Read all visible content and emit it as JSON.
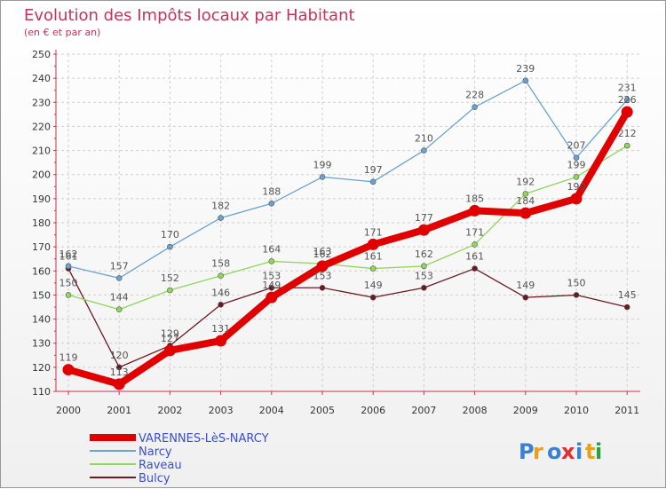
{
  "chart_data": {
    "type": "line",
    "title": "Evolution des Impôts locaux par Habitant",
    "subtitle": "(en € et par an)",
    "x": [
      "2000",
      "2001",
      "2002",
      "2003",
      "2004",
      "2005",
      "2006",
      "2007",
      "2008",
      "2009",
      "2010",
      "2011"
    ],
    "ylim": [
      110,
      250
    ],
    "yticks": [
      110,
      120,
      130,
      140,
      150,
      160,
      170,
      180,
      190,
      200,
      210,
      220,
      230,
      240,
      250
    ],
    "grid": true,
    "legend_position": "bottom-left",
    "series": [
      {
        "name": "Bulcy",
        "color": "#6b1a22",
        "values": [
          161,
          120,
          129,
          146,
          153,
          153,
          149,
          153,
          161,
          149,
          150,
          145
        ]
      },
      {
        "name": "Raveau",
        "color": "#8fd65a",
        "values": [
          150,
          144,
          152,
          158,
          164,
          163,
          161,
          162,
          171,
          192,
          199,
          212
        ]
      },
      {
        "name": "Narcy",
        "color": "#6aa2d2",
        "values": [
          162,
          157,
          170,
          182,
          188,
          199,
          197,
          210,
          228,
          239,
          207,
          231
        ]
      },
      {
        "name": "VARENNES-LèS-NARCY",
        "color": "#e00000",
        "values": [
          119,
          113,
          127,
          131,
          149,
          162,
          171,
          177,
          185,
          184,
          190,
          226
        ]
      }
    ],
    "legend_order": [
      "VARENNES-LèS-NARCY",
      "Narcy",
      "Raveau",
      "Bulcy"
    ]
  },
  "logo": {
    "text": "Proxiti"
  }
}
